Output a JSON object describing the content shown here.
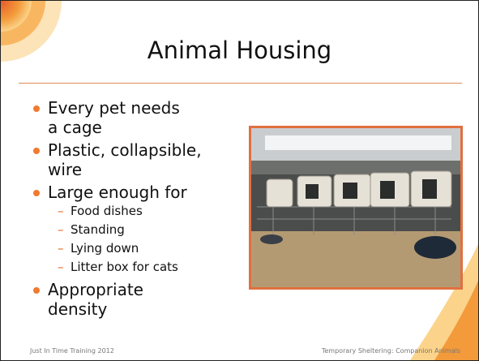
{
  "slide": {
    "title": "Animal Housing",
    "bullets": [
      {
        "text": "Every pet needs a cage"
      },
      {
        "text": "Plastic, collapsible, wire"
      },
      {
        "text": "Large enough for",
        "sub": [
          "Food dishes",
          "Standing",
          "Lying down",
          "Litter box for cats"
        ]
      },
      {
        "text": "Appropriate density"
      }
    ],
    "footer": {
      "left": "Just In Time Training 2012",
      "right": "Temporary Sheltering: Companion Animals"
    }
  }
}
